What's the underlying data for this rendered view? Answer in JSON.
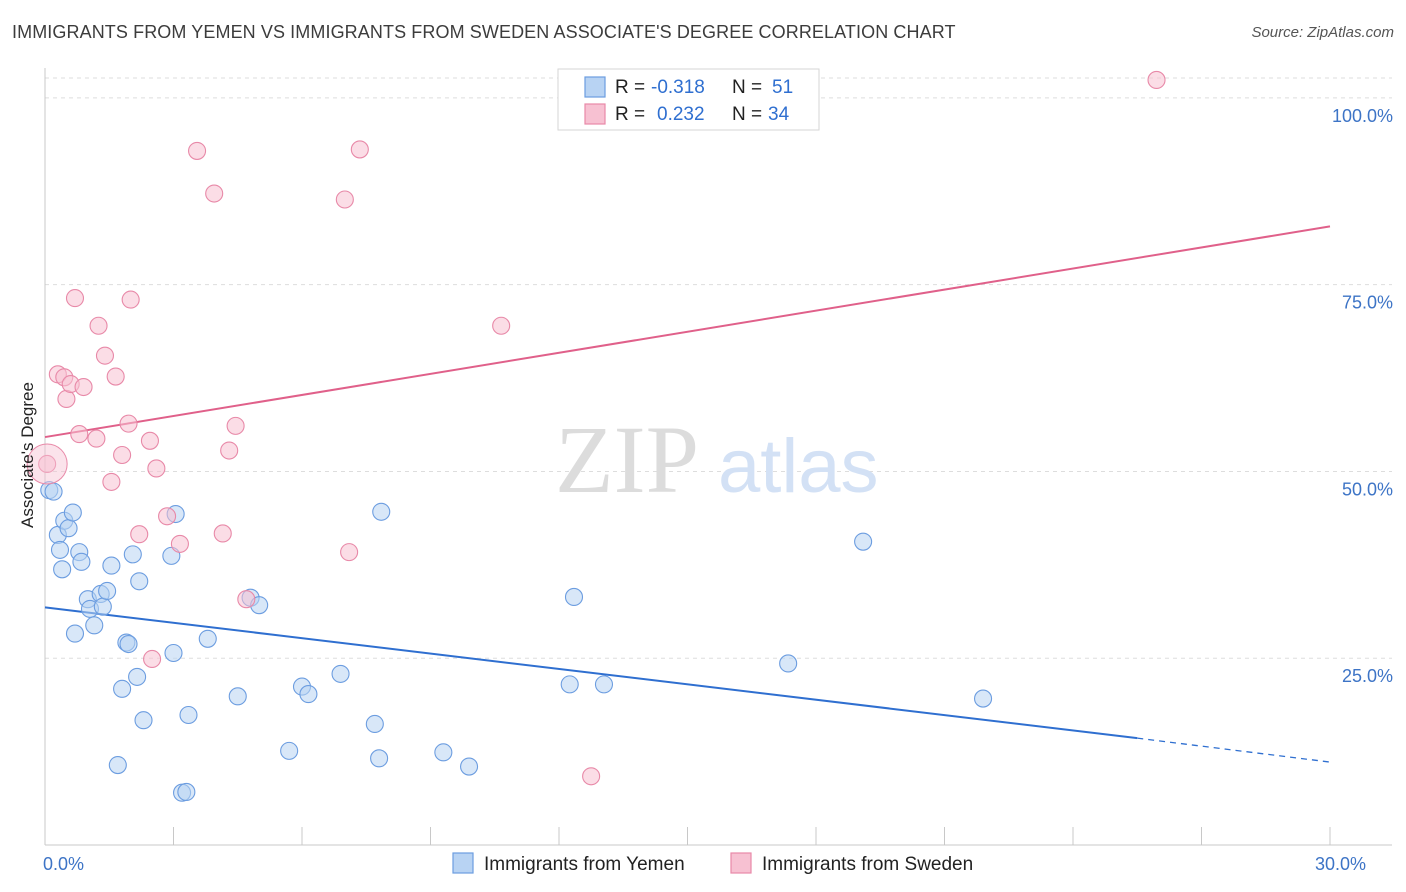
{
  "title": "IMMIGRANTS FROM YEMEN VS IMMIGRANTS FROM SWEDEN ASSOCIATE'S DEGREE CORRELATION CHART",
  "source": "Source: ZipAtlas.com",
  "watermark": {
    "zip": "ZIP",
    "atlas": "atlas"
  },
  "colors": {
    "blue_fill": "#b8d3f3",
    "blue_stroke": "#6c9de0",
    "blue_line": "#2f6fd0",
    "pink_fill": "#f7c1d2",
    "pink_stroke": "#e889a8",
    "pink_line": "#e0608a",
    "tick_text": "#3d74c6",
    "grid": "#dddddd"
  },
  "legend_top": {
    "rows": [
      {
        "r_label": "R =",
        "r_value": "-0.318",
        "n_label": "N =",
        "n_value": "51",
        "color": "blue"
      },
      {
        "r_label": "R =",
        "r_value": "0.232",
        "n_label": "N =",
        "n_value": "34",
        "color": "pink"
      }
    ]
  },
  "chart_data": {
    "type": "scatter",
    "xlabel": "",
    "ylabel": "Associate's Degree",
    "xlim": [
      0,
      30
    ],
    "ylim": [
      0,
      104
    ],
    "x_tick_labels": [
      {
        "value": 0,
        "label": "0.0%"
      },
      {
        "value": 30,
        "label": "30.0%"
      }
    ],
    "x_minor_ticks": [
      3,
      6,
      9,
      12,
      15,
      18,
      21,
      24,
      27,
      30
    ],
    "y_ticks": [
      {
        "value": 25,
        "label": "25.0%"
      },
      {
        "value": 50,
        "label": "50.0%"
      },
      {
        "value": 75,
        "label": "75.0%"
      },
      {
        "value": 100,
        "label": "100.0%"
      }
    ],
    "grid": true,
    "legend_position": "bottom-center",
    "series": [
      {
        "name": "Immigrants from Yemen",
        "color": "blue",
        "trend": {
          "x0": 0,
          "y0": 31.8,
          "x1": 25.5,
          "y1": 14.3,
          "dash_to_x": 30,
          "dash_to_y": 11.1
        },
        "points": [
          [
            0.1,
            47.5
          ],
          [
            0.2,
            47.3
          ],
          [
            0.3,
            41.5
          ],
          [
            0.35,
            39.5
          ],
          [
            0.4,
            36.9
          ],
          [
            0.45,
            43.4
          ],
          [
            0.55,
            42.4
          ],
          [
            0.65,
            44.5
          ],
          [
            0.7,
            28.3
          ],
          [
            0.8,
            39.2
          ],
          [
            0.85,
            37.9
          ],
          [
            1.0,
            32.9
          ],
          [
            1.05,
            31.6
          ],
          [
            1.15,
            29.4
          ],
          [
            1.3,
            33.6
          ],
          [
            1.35,
            31.9
          ],
          [
            1.45,
            34.0
          ],
          [
            1.55,
            37.4
          ],
          [
            1.7,
            10.7
          ],
          [
            1.8,
            20.9
          ],
          [
            1.9,
            27.1
          ],
          [
            1.95,
            26.9
          ],
          [
            2.05,
            38.9
          ],
          [
            2.15,
            22.5
          ],
          [
            2.2,
            35.3
          ],
          [
            2.3,
            16.7
          ],
          [
            2.95,
            38.7
          ],
          [
            3.0,
            25.7
          ],
          [
            3.05,
            44.3
          ],
          [
            3.2,
            7.0
          ],
          [
            3.3,
            7.1
          ],
          [
            3.35,
            17.4
          ],
          [
            3.8,
            27.6
          ],
          [
            4.5,
            19.9
          ],
          [
            4.8,
            33.1
          ],
          [
            5.0,
            32.1
          ],
          [
            5.7,
            12.6
          ],
          [
            6.0,
            21.2
          ],
          [
            6.15,
            20.2
          ],
          [
            6.9,
            22.9
          ],
          [
            7.7,
            16.2
          ],
          [
            7.8,
            11.6
          ],
          [
            7.85,
            44.6
          ],
          [
            9.3,
            12.4
          ],
          [
            9.9,
            10.5
          ],
          [
            12.25,
            21.5
          ],
          [
            12.35,
            33.2
          ],
          [
            13.05,
            21.5
          ],
          [
            17.35,
            24.3
          ],
          [
            19.1,
            40.6
          ],
          [
            21.9,
            19.6
          ]
        ]
      },
      {
        "name": "Immigrants from Sweden",
        "color": "pink",
        "trend": {
          "x0": 0,
          "y0": 54.6,
          "x1": 30,
          "y1": 82.8
        },
        "points": [
          [
            0.05,
            51.0
          ],
          [
            0.3,
            63.0
          ],
          [
            0.45,
            62.6
          ],
          [
            0.5,
            59.7
          ],
          [
            0.6,
            61.7
          ],
          [
            0.7,
            73.2
          ],
          [
            0.8,
            55.0
          ],
          [
            0.9,
            61.3
          ],
          [
            1.2,
            54.4
          ],
          [
            1.25,
            69.5
          ],
          [
            1.4,
            65.5
          ],
          [
            1.55,
            48.6
          ],
          [
            1.65,
            62.7
          ],
          [
            1.8,
            52.2
          ],
          [
            1.95,
            56.4
          ],
          [
            2.0,
            73.0
          ],
          [
            2.2,
            41.6
          ],
          [
            2.45,
            54.1
          ],
          [
            2.5,
            24.9
          ],
          [
            2.6,
            50.4
          ],
          [
            2.85,
            44.0
          ],
          [
            3.15,
            40.3
          ],
          [
            3.55,
            92.9
          ],
          [
            3.95,
            87.2
          ],
          [
            4.15,
            41.7
          ],
          [
            4.3,
            52.8
          ],
          [
            4.45,
            56.1
          ],
          [
            4.7,
            32.9
          ],
          [
            7.0,
            86.4
          ],
          [
            7.1,
            39.2
          ],
          [
            7.35,
            93.1
          ],
          [
            10.65,
            69.5
          ],
          [
            12.75,
            9.2
          ],
          [
            25.95,
            102.4
          ]
        ]
      }
    ]
  },
  "legend_bottom": [
    {
      "label": "Immigrants from Yemen",
      "color": "blue"
    },
    {
      "label": "Immigrants from Sweden",
      "color": "pink"
    }
  ]
}
